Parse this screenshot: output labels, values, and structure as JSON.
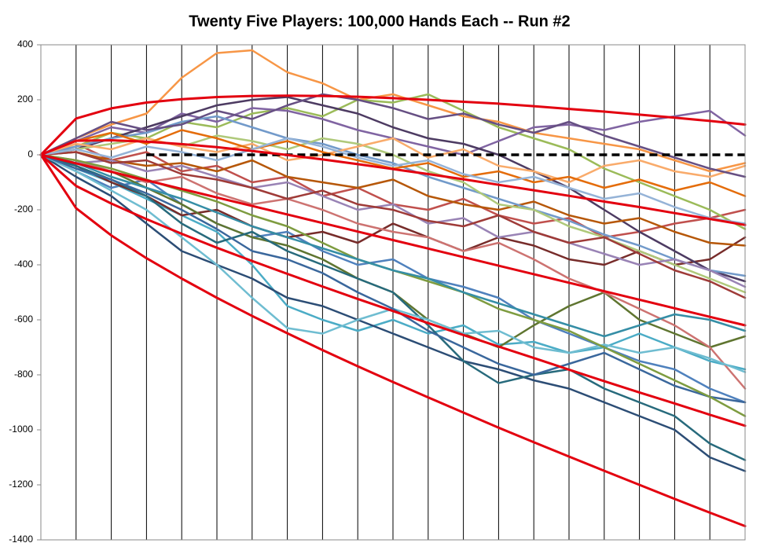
{
  "chart_data": {
    "type": "line",
    "title": "Twenty Five Players: 100,000 Hands Each -- Run #2",
    "x": [
      0,
      5000,
      10000,
      15000,
      20000,
      25000,
      30000,
      35000,
      40000,
      45000,
      50000,
      55000,
      60000,
      65000,
      70000,
      75000,
      80000,
      85000,
      90000,
      95000,
      100000
    ],
    "xlim": [
      0,
      100000
    ],
    "ylim": [
      -1400,
      400
    ],
    "yticks": [
      400,
      200,
      0,
      -200,
      -400,
      -600,
      -800,
      -1000,
      -1200,
      -1400
    ],
    "x_grid": true,
    "series": [
      {
        "color": "#4f81bd",
        "values": [
          0,
          -60,
          -120,
          -90,
          -180,
          -250,
          -300,
          -280,
          -350,
          -400,
          -380,
          -450,
          -480,
          -520,
          -600,
          -650,
          -700,
          -750,
          -780,
          -850,
          -900
        ]
      },
      {
        "color": "#c0504d",
        "values": [
          0,
          40,
          -20,
          10,
          -60,
          -40,
          -100,
          -80,
          -150,
          -120,
          -180,
          -200,
          -160,
          -220,
          -250,
          -230,
          -300,
          -280,
          -250,
          -230,
          -200
        ]
      },
      {
        "color": "#9bbb59",
        "values": [
          0,
          30,
          80,
          60,
          120,
          100,
          150,
          170,
          140,
          200,
          190,
          220,
          160,
          100,
          60,
          20,
          -50,
          -100,
          -150,
          -200,
          -270
        ]
      },
      {
        "color": "#8064a2",
        "values": [
          0,
          50,
          100,
          80,
          150,
          120,
          170,
          160,
          130,
          90,
          60,
          30,
          0,
          50,
          100,
          110,
          90,
          120,
          140,
          160,
          70
        ]
      },
      {
        "color": "#4bacc6",
        "values": [
          0,
          -50,
          -100,
          -160,
          -220,
          -280,
          -400,
          -550,
          -600,
          -640,
          -600,
          -650,
          -620,
          -690,
          -680,
          -720,
          -700,
          -650,
          -700,
          -750,
          -780
        ]
      },
      {
        "color": "#f79646",
        "values": [
          0,
          60,
          110,
          150,
          280,
          370,
          380,
          300,
          260,
          200,
          220,
          180,
          140,
          120,
          80,
          60,
          40,
          20,
          -20,
          -60,
          -30
        ]
      },
      {
        "color": "#2c4d75",
        "values": [
          0,
          -80,
          -150,
          -250,
          -350,
          -400,
          -450,
          -520,
          -550,
          -600,
          -650,
          -700,
          -750,
          -780,
          -820,
          -850,
          -900,
          -950,
          -1000,
          -1100,
          -1150
        ]
      },
      {
        "color": "#772c2a",
        "values": [
          0,
          -40,
          -100,
          -150,
          -220,
          -200,
          -260,
          -300,
          -280,
          -320,
          -250,
          -300,
          -350,
          -300,
          -330,
          -380,
          -400,
          -350,
          -400,
          -380,
          -300
        ]
      },
      {
        "color": "#5f7530",
        "values": [
          0,
          -30,
          -60,
          -120,
          -180,
          -250,
          -300,
          -330,
          -380,
          -450,
          -500,
          -600,
          -650,
          -700,
          -620,
          -550,
          -500,
          -600,
          -650,
          -700,
          -660
        ]
      },
      {
        "color": "#4d3b62",
        "values": [
          0,
          20,
          60,
          100,
          140,
          180,
          200,
          210,
          180,
          150,
          100,
          60,
          40,
          0,
          -60,
          -120,
          -200,
          -280,
          -350,
          -420,
          -460
        ]
      },
      {
        "color": "#276a7c",
        "values": [
          0,
          -40,
          -90,
          -150,
          -250,
          -320,
          -280,
          -350,
          -400,
          -450,
          -500,
          -620,
          -750,
          -830,
          -800,
          -780,
          -850,
          -900,
          -950,
          -1050,
          -1110
        ]
      },
      {
        "color": "#b65708",
        "values": [
          0,
          10,
          -20,
          -40,
          -30,
          -60,
          -20,
          -80,
          -100,
          -120,
          -90,
          -150,
          -180,
          -200,
          -170,
          -220,
          -250,
          -230,
          -280,
          -320,
          -330
        ]
      },
      {
        "color": "#729aca",
        "values": [
          0,
          30,
          60,
          80,
          120,
          140,
          100,
          60,
          40,
          0,
          -30,
          -80,
          -120,
          -160,
          -200,
          -240,
          -290,
          -330,
          -380,
          -420,
          -440
        ]
      },
      {
        "color": "#cd7371",
        "values": [
          0,
          -20,
          -60,
          -100,
          -80,
          -140,
          -180,
          -160,
          -200,
          -250,
          -280,
          -300,
          -350,
          -320,
          -380,
          -450,
          -500,
          -560,
          -620,
          -700,
          -850
        ]
      },
      {
        "color": "#afc97a",
        "values": [
          0,
          20,
          40,
          60,
          30,
          70,
          50,
          20,
          60,
          40,
          0,
          -60,
          -100,
          -180,
          -200,
          -260,
          -300,
          -350,
          -400,
          -450,
          -500
        ]
      },
      {
        "color": "#9983b5",
        "values": [
          0,
          -30,
          -20,
          -60,
          -40,
          -80,
          -120,
          -100,
          -150,
          -200,
          -180,
          -250,
          -230,
          -300,
          -280,
          -320,
          -360,
          -400,
          -380,
          -420,
          -480
        ]
      },
      {
        "color": "#6fbdd1",
        "values": [
          0,
          -60,
          -130,
          -200,
          -300,
          -400,
          -520,
          -630,
          -650,
          -600,
          -560,
          -600,
          -650,
          -640,
          -700,
          -720,
          -690,
          -720,
          -700,
          -740,
          -790
        ]
      },
      {
        "color": "#f9ab6b",
        "values": [
          0,
          40,
          20,
          60,
          30,
          10,
          40,
          -20,
          0,
          30,
          60,
          -10,
          20,
          -40,
          -60,
          -100,
          -40,
          -20,
          -60,
          -80,
          -40
        ]
      },
      {
        "color": "#3a679c",
        "values": [
          0,
          -50,
          -90,
          -140,
          -200,
          -270,
          -350,
          -380,
          -430,
          -500,
          -560,
          -640,
          -700,
          -760,
          -800,
          -760,
          -720,
          -780,
          -840,
          -880,
          -900
        ]
      },
      {
        "color": "#9f3b38",
        "values": [
          0,
          10,
          -30,
          -20,
          -70,
          -90,
          -120,
          -160,
          -130,
          -180,
          -200,
          -240,
          -260,
          -220,
          -280,
          -320,
          -300,
          -360,
          -420,
          -460,
          -520
        ]
      },
      {
        "color": "#7e9c40",
        "values": [
          0,
          -20,
          -50,
          -90,
          -130,
          -170,
          -220,
          -260,
          -320,
          -380,
          -420,
          -460,
          -500,
          -560,
          -600,
          -640,
          -700,
          -760,
          -820,
          -880,
          -950
        ]
      },
      {
        "color": "#664f83",
        "values": [
          0,
          60,
          120,
          90,
          110,
          160,
          130,
          180,
          220,
          200,
          170,
          130,
          150,
          110,
          80,
          120,
          70,
          30,
          -10,
          -50,
          -80
        ]
      },
      {
        "color": "#358ea6",
        "values": [
          0,
          -30,
          -80,
          -120,
          -160,
          -210,
          -260,
          -300,
          -340,
          -380,
          -420,
          -450,
          -500,
          -540,
          -580,
          -620,
          -660,
          -620,
          -580,
          -600,
          -640
        ]
      },
      {
        "color": "#e46c0a",
        "values": [
          0,
          50,
          80,
          40,
          90,
          60,
          20,
          50,
          10,
          -20,
          -50,
          -30,
          -80,
          -60,
          -100,
          -80,
          -120,
          -90,
          -130,
          -100,
          -150
        ]
      },
      {
        "color": "#95b3d7",
        "values": [
          0,
          20,
          -10,
          30,
          10,
          -20,
          20,
          60,
          30,
          -10,
          -40,
          -20,
          -70,
          -100,
          -80,
          -120,
          -160,
          -140,
          -190,
          -230,
          -250
        ]
      },
      {
        "color": "#000000",
        "dashed": true,
        "values": [
          null,
          null,
          null,
          0,
          0,
          0,
          0,
          0,
          0,
          0,
          0,
          0,
          0,
          0,
          0,
          0,
          0,
          0,
          0,
          0,
          0
        ]
      },
      {
        "color": "#e3000f",
        "values": [
          0,
          132,
          169,
          190,
          202,
          210,
          214,
          215,
          214,
          211,
          206,
          200,
          193,
          186,
          177,
          167,
          157,
          146,
          135,
          123,
          110
        ]
      },
      {
        "color": "#e3000f",
        "values": [
          0,
          51,
          53,
          48,
          39,
          28,
          14,
          -1,
          -17,
          -34,
          -52,
          -70,
          -89,
          -109,
          -129,
          -149,
          -170,
          -190,
          -212,
          -233,
          -255
        ]
      },
      {
        "color": "#e3000f",
        "values": [
          0,
          -31,
          -62,
          -93,
          -124,
          -155,
          -186,
          -217,
          -248,
          -279,
          -310,
          -341,
          -372,
          -403,
          -434,
          -465,
          -496,
          -527,
          -558,
          -589,
          -620
        ]
      },
      {
        "color": "#e3000f",
        "values": [
          0,
          -113,
          -177,
          -234,
          -287,
          -338,
          -386,
          -433,
          -479,
          -524,
          -568,
          -612,
          -655,
          -697,
          -739,
          -781,
          -823,
          -864,
          -904,
          -945,
          -985
        ]
      },
      {
        "color": "#e3000f",
        "values": [
          0,
          -194,
          -293,
          -376,
          -450,
          -520,
          -586,
          -649,
          -710,
          -769,
          -826,
          -882,
          -937,
          -992,
          -1045,
          -1097,
          -1149,
          -1200,
          -1251,
          -1301,
          -1350
        ]
      }
    ]
  }
}
